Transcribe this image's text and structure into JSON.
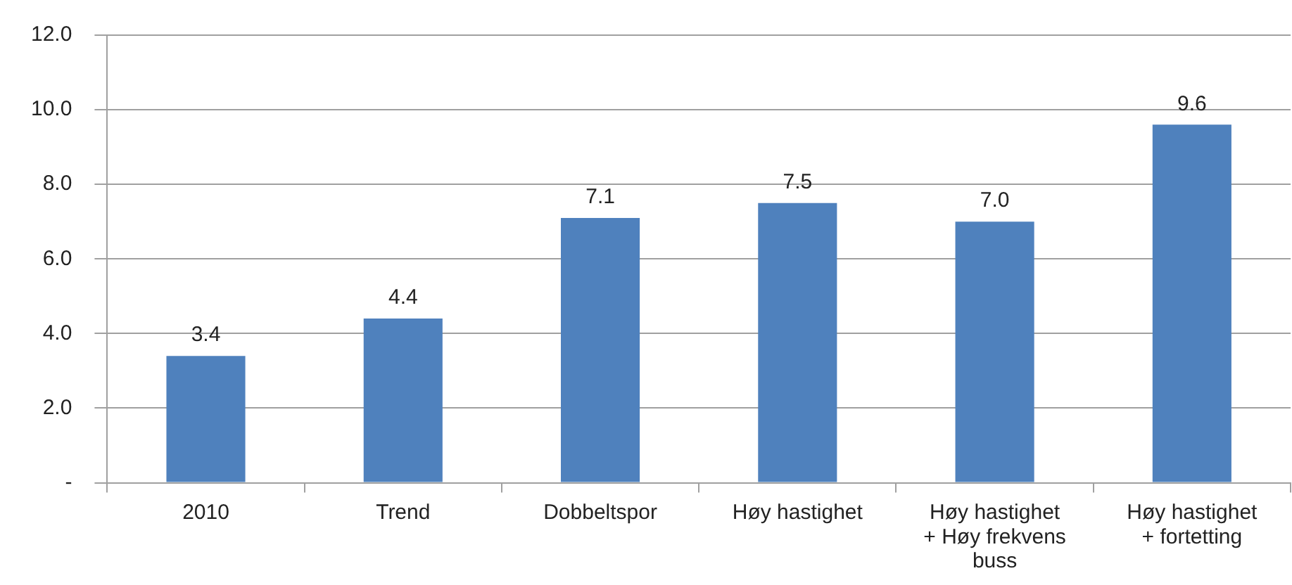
{
  "chart_data": {
    "type": "bar",
    "categories": [
      "2010",
      "Trend",
      "Dobbeltspor",
      "Høy hastighet",
      "Høy hastighet\n+ Høy frekvens\nbuss",
      "Høy hastighet\n+ fortetting"
    ],
    "values": [
      3.4,
      4.4,
      7.1,
      7.5,
      7.0,
      9.6
    ],
    "value_labels": [
      "3.4",
      "4.4",
      "7.1",
      "7.5",
      "7.0",
      "9.6"
    ],
    "color": "#4f81bd",
    "ylim": [
      0,
      12
    ],
    "yticks": [
      {
        "value": 0,
        "label": "-"
      },
      {
        "value": 2,
        "label": "2.0"
      },
      {
        "value": 4,
        "label": "4.0"
      },
      {
        "value": 6,
        "label": "6.0"
      },
      {
        "value": 8,
        "label": "8.0"
      },
      {
        "value": 10,
        "label": "10.0"
      },
      {
        "value": 12,
        "label": "12.0"
      }
    ],
    "grid": "y"
  }
}
